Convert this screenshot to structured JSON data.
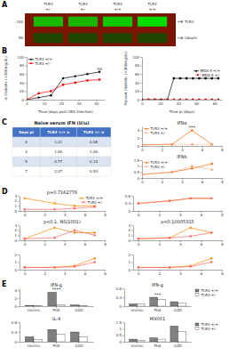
{
  "chart_data": [
    {
      "type": "blot",
      "subtitle": "A",
      "color": "#7B1400",
      "categories": [
        "TLR3",
        "TLR3",
        "TLR3",
        "TLR3"
      ],
      "annotations": [
        "+/-",
        "+/-",
        "+/+",
        "+/+"
      ],
      "series": [
        {
          "name": "TLR3",
          "mw": 100,
          "color": "#00DD00",
          "values": [
            0.82,
            0.8,
            0.9,
            1.0
          ]
        },
        {
          "name": "tubulin",
          "mw": 50,
          "color": "#005500",
          "values": [
            0.75,
            0.75,
            0.75,
            0.75
          ]
        }
      ]
    },
    {
      "type": "line",
      "subtitle": "B",
      "xlabel": "Time (days post-CB4 infection)",
      "ylabel": "% Diabetic (>300mg/dL)",
      "x": [
        0,
        7,
        14,
        21,
        28,
        35,
        42
      ],
      "xlim": [
        0,
        45
      ],
      "xticks": [
        0,
        10,
        20,
        30,
        40
      ],
      "ylim": [
        0,
        100
      ],
      "yticks": [
        0,
        20,
        40,
        60,
        80,
        100
      ],
      "legend": "upper left",
      "annotations": [
        "ns"
      ],
      "series": [
        {
          "name": "TLR3 +/+",
          "color": "black",
          "marker": "circle",
          "line_style": "solid",
          "values": [
            0,
            5,
            10,
            50,
            55,
            60,
            65
          ]
        },
        {
          "name": "TLR3 +/-",
          "color": "red",
          "marker": "square",
          "line_style": "solid",
          "values": [
            0,
            15,
            20,
            35,
            40,
            45,
            47
          ]
        }
      ]
    },
    {
      "type": "line",
      "xlabel": "Time pi (days)",
      "ylabel": "Percent Diabetic (>300mg/dL)",
      "x": [
        0,
        7,
        14,
        21,
        28,
        35,
        42,
        49,
        56,
        63,
        70,
        77,
        84
      ],
      "xlim": [
        0,
        88
      ],
      "xticks": [
        0,
        20,
        40,
        60,
        80
      ],
      "ylim": [
        0,
        100
      ],
      "yticks": [
        0,
        20,
        40,
        60,
        80,
        100
      ],
      "legend": "center right",
      "series": [
        {
          "name": "MDA-5 +/+",
          "color": "black",
          "marker": "square",
          "line_style": "solid",
          "values": [
            0,
            0,
            0,
            0,
            0,
            50,
            50,
            50,
            50,
            50,
            50,
            50,
            50
          ]
        },
        {
          "name": "MDA-5 +/-",
          "color": "#CC0000",
          "marker": "square",
          "line_style": "dashed",
          "values": [
            0,
            0,
            0,
            0,
            0,
            0,
            0,
            0,
            0,
            0,
            0,
            0,
            0
          ]
        }
      ]
    },
    {
      "type": "table",
      "subtitle": "C",
      "title": "Naive serum IFN (U/u)",
      "color": "#4472C4",
      "xlabel": "Days pi",
      "x": [
        0,
        3,
        5,
        7
      ],
      "data_labels": true,
      "series": [
        {
          "name": "TLR3 +/+ n",
          "values": [
            1.21,
            1.0,
            0.77,
            2.07
          ],
          "value_labels": [
            "1.21",
            "1.00",
            "0.77",
            "2.07"
          ]
        },
        {
          "name": "TLR3 +/- n",
          "values": [
            0.08,
            1.0,
            0.14,
            0.53
          ],
          "value_labels": [
            "0.08",
            "1.00",
            "0.14",
            "0.53"
          ]
        }
      ]
    },
    {
      "type": "line",
      "title": "IFNa",
      "x": [
        0,
        3,
        5,
        7
      ],
      "xlim": [
        0,
        8
      ],
      "xticks": [
        0,
        2,
        4,
        6,
        8
      ],
      "ylim": [
        0,
        5
      ],
      "yticks": [
        0,
        2,
        4
      ],
      "legend": "upper left",
      "annotations": [
        "***"
      ],
      "series": [
        {
          "name": "TLR3 +/+",
          "color": "#FF6600",
          "marker": "circle",
          "line_style": "solid",
          "values": [
            0.3,
            0.4,
            4.0,
            0.4
          ]
        },
        {
          "name": "TLR3 +/-",
          "color": "#FF9966",
          "marker": "circle",
          "line_style": "dashed",
          "values": [
            0.3,
            0.4,
            0.4,
            0.4
          ]
        }
      ]
    },
    {
      "type": "line",
      "title": "IFNb",
      "x": [
        0,
        3,
        5,
        7
      ],
      "xlim": [
        0,
        8
      ],
      "xticks": [
        0,
        2,
        4,
        6,
        8
      ],
      "ylim": [
        0,
        1.5
      ],
      "yticks": [
        0,
        0.5,
        1,
        1.5
      ],
      "legend": "upper left",
      "series": [
        {
          "name": "TLR3 +/+",
          "color": "#FF6600",
          "marker": "circle",
          "line_style": "solid",
          "values": [
            0.3,
            0.5,
            0.8,
            1.2
          ]
        },
        {
          "name": "TLR3 +/-",
          "color": "#FF9966",
          "marker": "circle",
          "line_style": "dashed",
          "values": [
            0.3,
            0.5,
            1.0,
            0.7
          ]
        }
      ]
    },
    {
      "type": "line",
      "subtitle": "D",
      "title": "p=0.7162776",
      "x": [
        0,
        3,
        5,
        7
      ],
      "xlim": [
        -0.5,
        8
      ],
      "xticks": [
        0,
        2,
        4,
        6,
        8
      ],
      "ylim": [
        0,
        3
      ],
      "yticks": [
        0,
        1,
        2,
        3
      ],
      "legend": "upper right",
      "series": [
        {
          "name": "TLR3 +/+",
          "color": "#FF8800",
          "marker": "circle",
          "line_style": "solid",
          "values": [
            2.5,
            1.5,
            1.0,
            1.0
          ]
        },
        {
          "name": "TLR3 +/-",
          "color": "#FF6666",
          "marker": "circle",
          "line_style": "solid",
          "values": [
            0.3,
            0.3,
            0.5,
            0.8
          ]
        }
      ]
    },
    {
      "type": "line",
      "x": [
        0,
        3,
        5,
        7
      ],
      "xlim": [
        -0.5,
        8
      ],
      "xticks": [
        0,
        2,
        4,
        6,
        8
      ],
      "ylim": [
        0,
        0.6
      ],
      "yticks": [
        0,
        0.3,
        0.6
      ],
      "series": [
        {
          "color": "#FF8800",
          "marker": "circle",
          "line_style": "solid",
          "values": [
            0.3,
            0.4,
            0.5,
            0.5
          ]
        },
        {
          "color": "#FF6666",
          "marker": "circle",
          "line_style": "solid",
          "values": [
            0.3,
            0.4,
            0.5,
            0.5
          ]
        }
      ]
    },
    {
      "type": "line",
      "title": "p<0.1, NS(1001)",
      "x": [
        0,
        3,
        5,
        7
      ],
      "xlim": [
        -0.5,
        8
      ],
      "xticks": [
        0,
        2,
        4,
        6,
        8
      ],
      "ylim": [
        0,
        3
      ],
      "yticks": [
        0,
        1,
        2,
        3
      ],
      "series": [
        {
          "color": "#FF8800",
          "marker": "circle",
          "line_style": "solid",
          "values": [
            0.3,
            2.5,
            1.5,
            1.5
          ]
        },
        {
          "color": "#FF6666",
          "marker": "circle",
          "line_style": "solid",
          "values": [
            0.3,
            0.5,
            2.0,
            1.0
          ]
        }
      ]
    },
    {
      "type": "line",
      "title": "p<0.10005315",
      "x": [
        0,
        3,
        5,
        7
      ],
      "xlim": [
        -0.5,
        8
      ],
      "xticks": [
        0,
        2,
        4,
        6,
        8
      ],
      "ylim": [
        0,
        3
      ],
      "yticks": [
        0,
        1,
        2,
        3
      ],
      "series": [
        {
          "color": "#FF8800",
          "marker": "circle",
          "line_style": "solid",
          "values": [
            0.3,
            0.5,
            2.5,
            1.5
          ]
        },
        {
          "color": "#FF6666",
          "marker": "circle",
          "line_style": "solid",
          "values": [
            0.3,
            0.5,
            0.8,
            1.5
          ]
        }
      ]
    },
    {
      "type": "line",
      "x": [
        0,
        3,
        5,
        7
      ],
      "xlim": [
        -0.5,
        8
      ],
      "xticks": [
        0,
        2,
        4,
        6,
        8
      ],
      "ylim": [
        0,
        2
      ],
      "yticks": [
        0,
        1,
        2
      ],
      "series": [
        {
          "color": "#FF8800",
          "marker": "circle",
          "line_style": "solid",
          "values": [
            0.3,
            0.3,
            0.5,
            1.5
          ]
        },
        {
          "color": "#FF6666",
          "marker": "circle",
          "line_style": "solid",
          "values": [
            0.3,
            0.3,
            0.4,
            1.0
          ]
        }
      ]
    },
    {
      "type": "line",
      "x": [
        0,
        3,
        5,
        7
      ],
      "xlim": [
        -0.5,
        8
      ],
      "xticks": [
        0,
        2,
        4,
        6,
        8
      ],
      "ylim": [
        0,
        2
      ],
      "yticks": [
        0,
        1,
        2
      ],
      "series": [
        {
          "color": "#FF8800",
          "marker": "circle",
          "line_style": "solid",
          "values": [
            0.3,
            0.3,
            0.5,
            1.5
          ]
        },
        {
          "color": "#FF6666",
          "marker": "circle",
          "line_style": "solid",
          "values": [
            0.3,
            0.3,
            0.4,
            1.0
          ]
        }
      ]
    },
    {
      "type": "bar",
      "subtitle": "E",
      "title": "IFN-g",
      "categories": [
        "Unstim",
        "PHA",
        "GAD"
      ],
      "ylim": [
        0,
        4.5
      ],
      "yticks": [
        0,
        2,
        4
      ],
      "annotations": [
        "****"
      ],
      "series": [
        {
          "color": "#808080",
          "values": [
            0.2,
            3.5,
            0.3
          ]
        },
        {
          "color": "#FFFFFF",
          "values": [
            0.1,
            0.4,
            0.15
          ]
        }
      ]
    },
    {
      "type": "bar",
      "title": "IFN-g",
      "categories": [
        "Unstim",
        "PHA",
        "GAD"
      ],
      "ylim": [
        0,
        0.8
      ],
      "yticks": [
        0,
        0.4,
        0.8
      ],
      "annotations": [
        "***"
      ],
      "legend": "right",
      "series": [
        {
          "name": "TLR3 +/+",
          "color": "#808080",
          "values": [
            0.1,
            0.4,
            0.2
          ]
        },
        {
          "name": "TLR3 +/-",
          "color": "#FFFFFF",
          "values": [
            0.1,
            0.3,
            0.15
          ]
        }
      ]
    },
    {
      "type": "bar",
      "title": "IL-4",
      "categories": [
        "Unstim",
        "PHA",
        "GAD"
      ],
      "ylim": [
        0,
        0.8
      ],
      "yticks": [
        0,
        0.4,
        0.8
      ],
      "series": [
        {
          "color": "#808080",
          "values": [
            0.2,
            0.5,
            0.4
          ]
        },
        {
          "color": "#FFFFFF",
          "values": [
            0.1,
            0.3,
            0.2
          ]
        }
      ]
    },
    {
      "type": "bar",
      "title": "MX001",
      "categories": [
        "Unstim",
        "PHA",
        "GAD"
      ],
      "ylim": [
        0,
        1.5
      ],
      "yticks": [
        0,
        0.5,
        1,
        1.5
      ],
      "legend": "right",
      "series": [
        {
          "name": "TLR3 +/+",
          "color": "#808080",
          "values": [
            0.2,
            0.3,
            1.2
          ]
        },
        {
          "name": "TLR3 +/-",
          "color": "#FFFFFF",
          "values": [
            0.1,
            0.2,
            0.8
          ]
        }
      ]
    }
  ]
}
